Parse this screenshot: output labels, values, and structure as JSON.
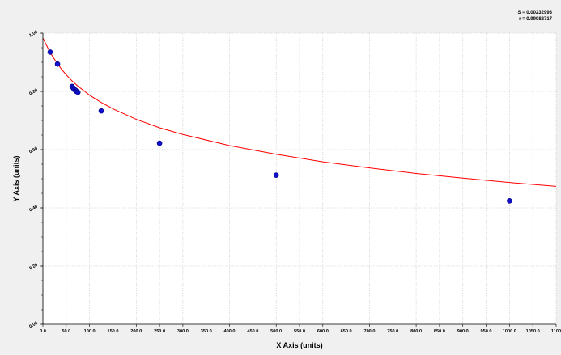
{
  "stats": {
    "s_line": "S = 0.00232993",
    "r_line": "r = 0.99982717"
  },
  "colors": {
    "background": "#f0f0f0",
    "plot_background": "#ffffff",
    "grid": "#c8c8c8",
    "curve": "#ff0000",
    "points": "#1010cc",
    "point_outline": "#000080"
  },
  "chart_data": {
    "type": "scatter",
    "xlabel": "X Axis (units)",
    "ylabel": "Y Axis (units)",
    "xlim": [
      0,
      1100
    ],
    "ylim": [
      0,
      1.0
    ],
    "grid": true,
    "x_ticks": [
      0,
      50,
      100,
      150,
      200,
      250,
      300,
      350,
      400,
      450,
      500,
      550,
      600,
      650,
      700,
      750,
      800,
      850,
      900,
      950,
      1000,
      1050,
      1100
    ],
    "x_tick_labels": [
      "0.0",
      "50.0",
      "100.0",
      "150.0",
      "200.0",
      "250.0",
      "300.0",
      "350.0",
      "400.0",
      "450.0",
      "500.0",
      "550.0",
      "600.0",
      "650.0",
      "700.0",
      "750.0",
      "800.0",
      "850.0",
      "900.0",
      "950.0",
      "1000.0",
      "1050.0",
      "1100"
    ],
    "y_ticks": [
      0.0,
      0.2,
      0.4,
      0.6,
      0.8,
      1.0
    ],
    "y_tick_labels": [
      "0.00",
      "0.20",
      "0.40",
      "0.60",
      "0.80",
      "1.00"
    ],
    "series": [
      {
        "type": "scatter",
        "x": [
          15.6,
          31.3,
          62.5,
          65,
          67,
          70,
          72,
          75,
          125,
          250,
          500,
          1000
        ],
        "y": [
          0.935,
          0.894,
          0.817,
          0.812,
          0.807,
          0.804,
          0.8,
          0.797,
          0.733,
          0.622,
          0.512,
          0.424
        ]
      },
      {
        "type": "line",
        "x": [
          0,
          10,
          20,
          30,
          40,
          50,
          62.5,
          75,
          100,
          125,
          150,
          200,
          250,
          300,
          400,
          500,
          600,
          700,
          800,
          900,
          1000,
          1100
        ],
        "y": [
          0.983,
          0.951,
          0.922,
          0.898,
          0.876,
          0.857,
          0.836,
          0.818,
          0.787,
          0.762,
          0.74,
          0.704,
          0.675,
          0.652,
          0.614,
          0.584,
          0.558,
          0.537,
          0.518,
          0.502,
          0.487,
          0.474
        ]
      }
    ]
  }
}
